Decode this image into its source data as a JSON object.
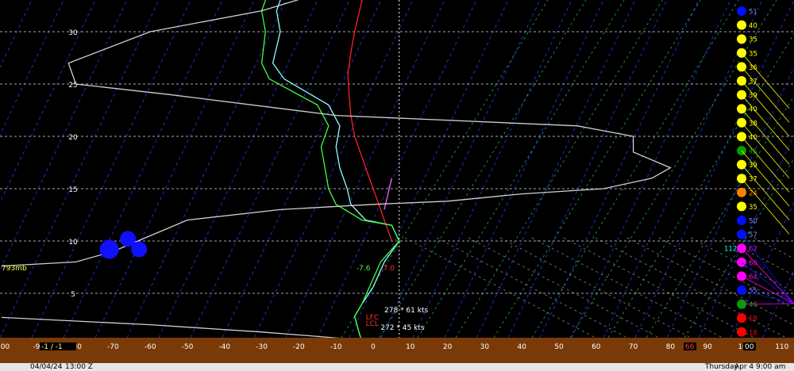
{
  "chart_data": {
    "type": "line",
    "title": "",
    "xlabel": "",
    "ylabel": "",
    "xlim": [
      -100,
      110
    ],
    "ylim": [
      0,
      35
    ],
    "height_ticks": [
      "5",
      "10",
      "15",
      "20",
      "25",
      "30"
    ],
    "height_values": [
      5,
      10,
      15,
      20,
      25,
      30
    ],
    "temp_ticks": [
      "-100",
      "-90",
      "-80",
      "-70",
      "-60",
      "-50",
      "-40",
      "-30",
      "-20",
      "-10",
      "0",
      "10",
      "20",
      "30",
      "40",
      "50",
      "60",
      "70",
      "80",
      "90",
      "100",
      "110"
    ],
    "temp_values": [
      -100,
      -90,
      -80,
      -70,
      -60,
      -50,
      -40,
      -30,
      -20,
      -10,
      0,
      10,
      20,
      30,
      40,
      50,
      60,
      70,
      80,
      90,
      100,
      110
    ],
    "freezing_line_x": 7,
    "series": [
      {
        "color": "#ff2020",
        "kind": "temperature",
        "points": [
          [
            5,
            10
          ],
          [
            4,
            11
          ],
          [
            3,
            12
          ],
          [
            2,
            13
          ],
          [
            1,
            14
          ],
          [
            0,
            15
          ],
          [
            -1,
            16
          ],
          [
            -2,
            17
          ],
          [
            -3,
            18
          ],
          [
            -4,
            19
          ],
          [
            -5,
            20
          ],
          [
            -6,
            22
          ],
          [
            -6.5,
            24
          ],
          [
            -6.8,
            26
          ],
          [
            -6,
            28
          ],
          [
            -5,
            30
          ],
          [
            -3,
            33
          ],
          [
            -1,
            35
          ]
        ]
      },
      {
        "color": "#90ffff",
        "kind": "wet-bulb",
        "points": [
          [
            -3,
            0.3
          ],
          [
            -4,
            1.5
          ],
          [
            -5,
            2.8
          ],
          [
            -3,
            4
          ],
          [
            0,
            5.6
          ],
          [
            3,
            8
          ],
          [
            7,
            10
          ],
          [
            5,
            11.5
          ],
          [
            -2,
            12
          ],
          [
            -6,
            13.5
          ],
          [
            -7,
            15
          ],
          [
            -9,
            17
          ],
          [
            -10,
            19
          ],
          [
            -9,
            21
          ],
          [
            -12,
            23
          ],
          [
            -24,
            25.5
          ],
          [
            -27,
            27
          ],
          [
            -25,
            30
          ],
          [
            -26,
            32
          ],
          [
            -23,
            35
          ]
        ]
      },
      {
        "color": "#40ff40",
        "kind": "dewpoint",
        "points": [
          [
            -3,
            0.3
          ],
          [
            -4,
            1.5
          ],
          [
            -5,
            2.8
          ],
          [
            -3,
            4
          ],
          [
            -1,
            5.6
          ],
          [
            2,
            8
          ],
          [
            7,
            10
          ],
          [
            5,
            11.5
          ],
          [
            -3,
            12
          ],
          [
            -10,
            13.5
          ],
          [
            -12,
            15
          ],
          [
            -13,
            17
          ],
          [
            -14,
            19
          ],
          [
            -12,
            21
          ],
          [
            -15,
            23
          ],
          [
            -28,
            25.5
          ],
          [
            -30,
            27
          ],
          [
            -29,
            30
          ],
          [
            -30,
            32
          ],
          [
            -27,
            35
          ]
        ]
      },
      {
        "color": "#ff60ff",
        "kind": "parcel",
        "points": [
          [
            3,
            13
          ],
          [
            4,
            14.5
          ],
          [
            5,
            16
          ]
        ]
      },
      {
        "color": "#d0d0d0",
        "kind": "wind-trace",
        "points": [
          [
            -100,
            2.7
          ],
          [
            -60,
            2
          ],
          [
            -30,
            1.3
          ],
          [
            -5,
            0.6
          ],
          [
            -2,
            0
          ]
        ]
      },
      {
        "color": "#d0d0d0",
        "kind": "wind-trace",
        "points": [
          [
            -100,
            7.6
          ],
          [
            -90,
            7.8
          ],
          [
            -80,
            8
          ],
          [
            -70,
            9
          ],
          [
            -60,
            10.5
          ],
          [
            -50,
            12
          ],
          [
            -25,
            13
          ],
          [
            0,
            13.5
          ],
          [
            20,
            13.8
          ],
          [
            40,
            14.5
          ],
          [
            62,
            15
          ],
          [
            75,
            16
          ],
          [
            80,
            17
          ],
          [
            70,
            18.5
          ],
          [
            70,
            20
          ],
          [
            55,
            21
          ],
          [
            -10,
            22
          ],
          [
            -55,
            24
          ],
          [
            -80,
            25
          ],
          [
            -82,
            27
          ],
          [
            -60,
            30
          ],
          [
            -30,
            32
          ],
          [
            -2,
            35
          ]
        ]
      }
    ],
    "labels": [
      {
        "text": "793mb",
        "color": "#ffff60",
        "x": -100,
        "y": 7.2
      },
      {
        "text": "-7.6",
        "color": "#40ff40",
        "x": -4.5,
        "y": 7.2
      },
      {
        "text": "-7.0",
        "color": "#ff3030",
        "x": 2,
        "y": 7.2
      },
      {
        "text": "278 * 61 kts",
        "color": "#ffffff",
        "x": 3,
        "y": 3.2
      },
      {
        "text": "272 * 45 kts",
        "color": "#ffffff",
        "x": 2,
        "y": 1.5
      },
      {
        "text": "LFC",
        "color": "#ff3030",
        "x": -2,
        "y": 2.5
      },
      {
        "text": "LCL",
        "color": "#ff3030",
        "x": -2,
        "y": 1.9
      }
    ],
    "wind_column": [
      {
        "text": "51",
        "color": "#0010ff"
      },
      {
        "text": "40",
        "color": "#ffff00"
      },
      {
        "text": "35",
        "color": "#ffff00"
      },
      {
        "text": "35",
        "color": "#ffff00"
      },
      {
        "text": "36",
        "color": "#ffff00"
      },
      {
        "text": "37",
        "color": "#ffff00"
      },
      {
        "text": "39",
        "color": "#ffff00"
      },
      {
        "text": "40",
        "color": "#ffff00"
      },
      {
        "text": "38",
        "color": "#ffff00"
      },
      {
        "text": "40",
        "color": "#ffff00"
      },
      {
        "text": "45",
        "color": "#00a000"
      },
      {
        "text": "39",
        "color": "#ffff00"
      },
      {
        "text": "37",
        "color": "#ffff00"
      },
      {
        "text": "24",
        "color": "#ff8000"
      },
      {
        "text": "35",
        "color": "#ffff00"
      },
      {
        "text": "50",
        "color": "#0010ff"
      },
      {
        "text": "57",
        "color": "#0010ff"
      },
      {
        "text": "62",
        "color": "#ff00ff"
      },
      {
        "text": "60",
        "color": "#ff00ff"
      },
      {
        "text": "64",
        "color": "#ff00ff"
      },
      {
        "text": "55",
        "color": "#0010ff"
      },
      {
        "text": "46",
        "color": "#00a000"
      },
      {
        "text": "18",
        "color": "#ff0000"
      },
      {
        "text": "18",
        "color": "#ff0000"
      }
    ],
    "side_label": {
      "text": "112",
      "color": "#00ffff"
    },
    "bottom_boxes": [
      {
        "text": "-1 / -1",
        "color": "#ffff80"
      },
      {
        "text": "66",
        "color": "#ff4040"
      },
      {
        "text": "00",
        "color": "#ffffff"
      }
    ]
  },
  "status": {
    "date": "04/04/24",
    "time": "13:00 Z",
    "weekday": "Thursday",
    "local": "Apr 4  9:00 am"
  },
  "colors": {
    "axis_band": "#7a3a08",
    "grid": "#d0d0d0",
    "isotherm": "#2030c0",
    "mixing": "#20c080",
    "adiabat": "#c0c0c0"
  }
}
